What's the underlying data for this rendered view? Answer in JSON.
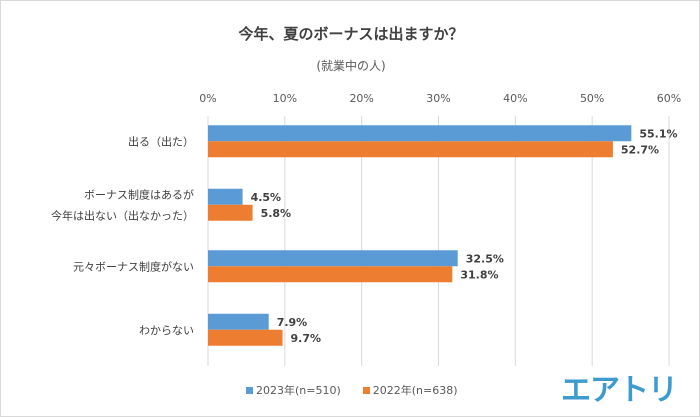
{
  "chart_data": {
    "type": "bar",
    "orientation": "horizontal",
    "title": "今年、夏のボーナスは出ますか？",
    "subtitle": "(就業中の人)",
    "categories": [
      [
        "出る（出た）"
      ],
      [
        "ボーナス制度はあるが",
        "今年は出ない（出なかった）"
      ],
      [
        "元々ボーナス制度がない"
      ],
      [
        "わからない"
      ]
    ],
    "xlim": [
      0,
      60
    ],
    "xticks": [
      "0%",
      "10%",
      "20%",
      "30%",
      "40%",
      "50%",
      "60%"
    ],
    "grid": true,
    "legend_position": "bottom",
    "series": [
      {
        "name": "2023年(n=510)",
        "color": "#5b9bd5",
        "values": [
          55.1,
          4.5,
          32.5,
          7.9
        ],
        "labels": [
          "55.1%",
          "4.5%",
          "32.5%",
          "7.9%"
        ]
      },
      {
        "name": "2022年(n=638)",
        "color": "#ed7d31",
        "values": [
          52.7,
          5.8,
          31.8,
          9.7
        ],
        "labels": [
          "52.7%",
          "5.8%",
          "31.8%",
          "9.7%"
        ]
      }
    ]
  },
  "logo": "エアトリ"
}
